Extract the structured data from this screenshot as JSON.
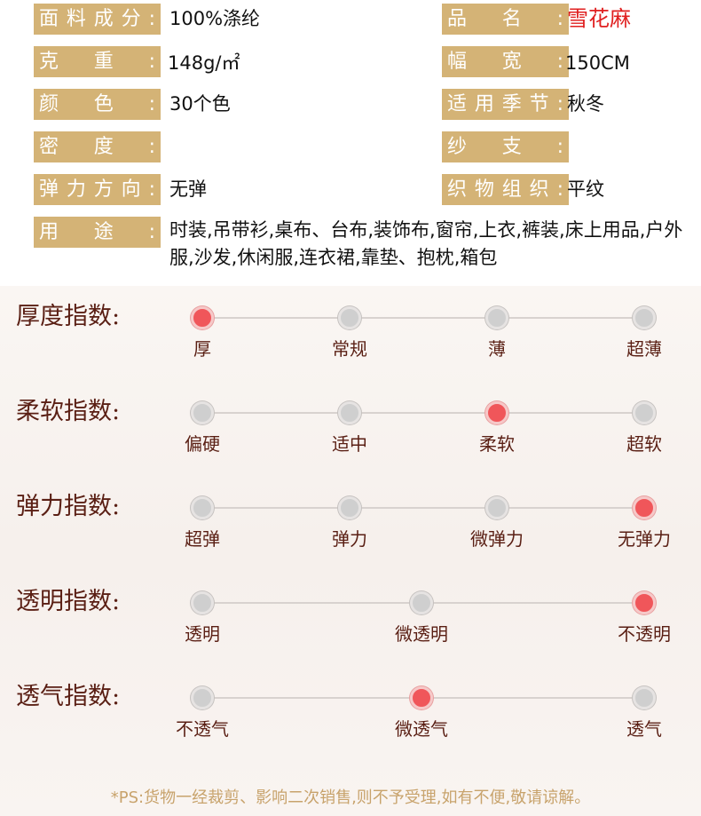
{
  "specs": {
    "fabric": {
      "label": [
        "面",
        "料",
        "成",
        "分",
        ":"
      ],
      "value": "100%涤纶"
    },
    "name": {
      "label": [
        "品",
        "名",
        ":"
      ],
      "value": "雪花麻"
    },
    "weight": {
      "label": [
        "克",
        "重",
        ":"
      ],
      "value": "148g/㎡"
    },
    "width": {
      "label": [
        "幅",
        "宽",
        ":"
      ],
      "value": "150CM"
    },
    "color": {
      "label": [
        "颜",
        "色",
        ":"
      ],
      "value": "30个色"
    },
    "season": {
      "label": [
        "适",
        "用",
        "季",
        "节",
        ":"
      ],
      "value": "秋冬"
    },
    "density": {
      "label": [
        "密",
        "度",
        ":"
      ],
      "value": ""
    },
    "yarn": {
      "label": [
        "纱",
        "支",
        ":"
      ],
      "value": ""
    },
    "stretch_dir": {
      "label": [
        "弹",
        "力",
        "方",
        "向",
        ":"
      ],
      "value": "无弹"
    },
    "weave": {
      "label": [
        "织",
        "物",
        "组",
        "织",
        ":"
      ],
      "value": "平纹"
    },
    "usage": {
      "label": [
        "用",
        "途",
        ":"
      ],
      "value": "时装,吊带衫,桌布、台布,装饰布,窗帘,上衣,裤装,床上用品,户外服,沙发,休闲服,连衣裙,靠垫、抱枕,箱包"
    }
  },
  "indices": [
    {
      "title": "厚度指数:",
      "options": [
        "厚",
        "常规",
        "薄",
        "超薄"
      ],
      "selected": 0
    },
    {
      "title": "柔软指数:",
      "options": [
        "偏硬",
        "适中",
        "柔软",
        "超软"
      ],
      "selected": 2
    },
    {
      "title": "弹力指数:",
      "options": [
        "超弹",
        "弹力",
        "微弹力",
        "无弹力"
      ],
      "selected": 3
    },
    {
      "title": "透明指数:",
      "options": [
        "透明",
        "微透明",
        "不透明"
      ],
      "selected": 2
    },
    {
      "title": "透气指数:",
      "options": [
        "不透气",
        "微透气",
        "透气"
      ],
      "selected": 1
    }
  ],
  "colors": {
    "label_bg": "#d4b376",
    "accent_red": "#f0565a",
    "title_brown": "#5a1f14",
    "footer": "#c8a36c"
  },
  "footer": "*PS:货物一经裁剪、影响二次销售,则不予受理,如有不便,敬请谅解。"
}
